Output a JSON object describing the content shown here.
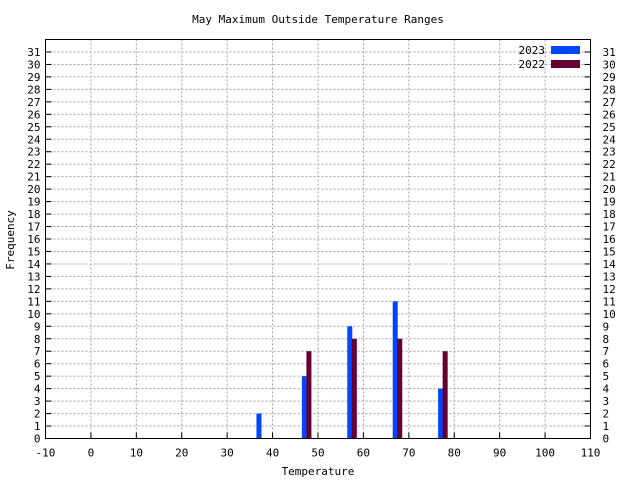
{
  "chart_data": {
    "type": "bar",
    "title": "May Maximum Outside Temperature Ranges",
    "xlabel": "Temperature",
    "ylabel": "Frequency",
    "xlim": [
      -10,
      110
    ],
    "ylim": [
      0,
      32
    ],
    "xticks": [
      -10,
      0,
      10,
      20,
      30,
      40,
      50,
      60,
      70,
      80,
      90,
      100,
      110
    ],
    "yticks": [
      0,
      1,
      2,
      3,
      4,
      5,
      6,
      7,
      8,
      9,
      10,
      11,
      12,
      13,
      14,
      15,
      16,
      17,
      18,
      19,
      20,
      21,
      22,
      23,
      24,
      25,
      26,
      27,
      28,
      29,
      30,
      31
    ],
    "grid": true,
    "legend_position": "top-right",
    "series": [
      {
        "name": "2023",
        "color": "#0046ff",
        "points": [
          [
            37,
            2
          ],
          [
            47,
            5
          ],
          [
            57,
            9
          ],
          [
            67,
            11
          ],
          [
            77,
            4
          ]
        ]
      },
      {
        "name": "2022",
        "color": "#660033",
        "points": [
          [
            48,
            7
          ],
          [
            58,
            8
          ],
          [
            68,
            8
          ],
          [
            78,
            7
          ]
        ]
      }
    ]
  }
}
